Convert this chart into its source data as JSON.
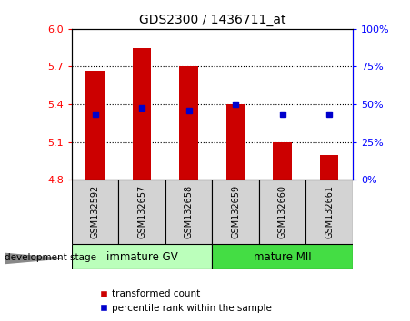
{
  "title": "GDS2300 / 1436711_at",
  "samples": [
    "GSM132592",
    "GSM132657",
    "GSM132658",
    "GSM132659",
    "GSM132660",
    "GSM132661"
  ],
  "bar_bottoms": [
    4.8,
    4.8,
    4.8,
    4.8,
    4.8,
    4.8
  ],
  "bar_tops": [
    5.67,
    5.85,
    5.7,
    5.4,
    5.1,
    5.0
  ],
  "percentile_values": [
    5.32,
    5.37,
    5.35,
    5.4,
    5.32,
    5.32
  ],
  "ylim": [
    4.8,
    6.0
  ],
  "yticks_left": [
    4.8,
    5.1,
    5.4,
    5.7,
    6.0
  ],
  "yticks_right_values": [
    0,
    25,
    50,
    75,
    100
  ],
  "yticks_right_positions": [
    4.8,
    5.1,
    5.4,
    5.7,
    6.0
  ],
  "bar_color": "#cc0000",
  "percentile_color": "#0000cc",
  "group1_label": "immature GV",
  "group2_label": "mature MII",
  "group1_color": "#bbffbb",
  "group2_color": "#44dd44",
  "dev_stage_label": "development stage",
  "legend_bar_label": "transformed count",
  "legend_pct_label": "percentile rank within the sample",
  "grid_color": "#888888",
  "plot_bg": "#ffffff",
  "sample_box_color": "#d3d3d3",
  "bar_width": 0.4
}
